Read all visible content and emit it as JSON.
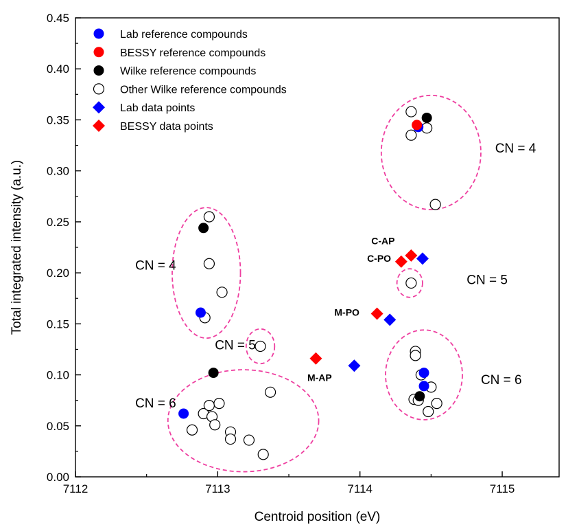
{
  "chart_data": {
    "type": "scatter",
    "xlabel": "Centroid position (eV)",
    "ylabel": "Total integrated intensity (a.u.)",
    "xlim": [
      7112,
      7115.4
    ],
    "ylim": [
      0,
      0.45
    ],
    "x_ticks": [
      "7112",
      "7113",
      "7114",
      "7115"
    ],
    "y_ticks": [
      "0.00",
      "0.05",
      "0.10",
      "0.15",
      "0.20",
      "0.25",
      "0.30",
      "0.35",
      "0.40",
      "0.45"
    ],
    "x_tick_values": [
      7112,
      7113,
      7114,
      7115
    ],
    "y_tick_values": [
      0,
      0.05,
      0.1,
      0.15,
      0.2,
      0.25,
      0.3,
      0.35,
      0.4,
      0.45
    ],
    "grid": false,
    "legend_position": "top-left",
    "series": [
      {
        "name": "Lab reference compounds",
        "marker": "circle-filled",
        "color": "#0000ff",
        "points": [
          [
            7112.88,
            0.161
          ],
          [
            7112.76,
            0.062
          ],
          [
            7114.45,
            0.102
          ],
          [
            7114.45,
            0.089
          ],
          [
            7114.41,
            0.343
          ]
        ]
      },
      {
        "name": "BESSY reference compounds",
        "marker": "circle-filled",
        "color": "#ff0000",
        "points": [
          [
            7114.4,
            0.345
          ]
        ]
      },
      {
        "name": "Wilke reference compounds",
        "marker": "circle-filled",
        "color": "#000000",
        "points": [
          [
            7112.9,
            0.244
          ],
          [
            7112.97,
            0.102
          ],
          [
            7114.47,
            0.352
          ],
          [
            7114.42,
            0.079
          ]
        ]
      },
      {
        "name": "Other Wilke reference compounds",
        "marker": "circle-open",
        "color": "#000000",
        "points": [
          [
            7112.94,
            0.255
          ],
          [
            7112.94,
            0.209
          ],
          [
            7113.03,
            0.181
          ],
          [
            7112.91,
            0.156
          ],
          [
            7113.3,
            0.128
          ],
          [
            7112.82,
            0.046
          ],
          [
            7112.9,
            0.062
          ],
          [
            7112.94,
            0.07
          ],
          [
            7112.96,
            0.059
          ],
          [
            7112.98,
            0.051
          ],
          [
            7113.01,
            0.072
          ],
          [
            7113.09,
            0.044
          ],
          [
            7113.09,
            0.037
          ],
          [
            7113.22,
            0.036
          ],
          [
            7113.32,
            0.022
          ],
          [
            7113.37,
            0.083
          ],
          [
            7114.36,
            0.19
          ],
          [
            7114.36,
            0.358
          ],
          [
            7114.36,
            0.335
          ],
          [
            7114.47,
            0.342
          ],
          [
            7114.53,
            0.267
          ],
          [
            7114.39,
            0.123
          ],
          [
            7114.39,
            0.119
          ],
          [
            7114.43,
            0.1
          ],
          [
            7114.5,
            0.088
          ],
          [
            7114.38,
            0.076
          ],
          [
            7114.41,
            0.075
          ],
          [
            7114.48,
            0.064
          ],
          [
            7114.54,
            0.072
          ]
        ]
      },
      {
        "name": "Lab data points",
        "marker": "diamond",
        "color": "#0000ff",
        "points": [
          [
            7114.44,
            0.214
          ],
          [
            7114.21,
            0.154
          ],
          [
            7113.96,
            0.109
          ]
        ]
      },
      {
        "name": "BESSY data points",
        "marker": "diamond",
        "color": "#ff0000",
        "points": [
          [
            7114.36,
            0.217
          ],
          [
            7114.29,
            0.211
          ],
          [
            7114.12,
            0.16
          ],
          [
            7113.69,
            0.116
          ]
        ]
      }
    ],
    "annotations": [
      {
        "text": "C-AP",
        "x": 7114.08,
        "y": 0.228
      },
      {
        "text": "C-PO",
        "x": 7114.05,
        "y": 0.211
      },
      {
        "text": "M-PO",
        "x": 7113.82,
        "y": 0.158
      },
      {
        "text": "M-AP",
        "x": 7113.63,
        "y": 0.094
      }
    ],
    "cn_labels": [
      {
        "text": "CN = 4",
        "x": 7112.42,
        "y": 0.203
      },
      {
        "text": "CN = 5",
        "x": 7112.98,
        "y": 0.125
      },
      {
        "text": "CN = 6",
        "x": 7112.42,
        "y": 0.068
      },
      {
        "text": "CN = 4",
        "x": 7114.95,
        "y": 0.318
      },
      {
        "text": "CN = 5",
        "x": 7114.75,
        "y": 0.189
      },
      {
        "text": "CN = 6",
        "x": 7114.85,
        "y": 0.091
      }
    ],
    "groups": [
      {
        "cx": 7112.92,
        "cy": 0.2,
        "rx": 0.24,
        "ry": 0.064
      },
      {
        "cx": 7113.3,
        "cy": 0.128,
        "rx": 0.1,
        "ry": 0.017
      },
      {
        "cx": 7113.18,
        "cy": 0.055,
        "rx": 0.53,
        "ry": 0.05
      },
      {
        "cx": 7114.5,
        "cy": 0.318,
        "rx": 0.35,
        "ry": 0.056
      },
      {
        "cx": 7114.35,
        "cy": 0.19,
        "rx": 0.09,
        "ry": 0.014
      },
      {
        "cx": 7114.45,
        "cy": 0.1,
        "rx": 0.27,
        "ry": 0.044
      }
    ],
    "group_outline_color": "#ee3fa0"
  }
}
